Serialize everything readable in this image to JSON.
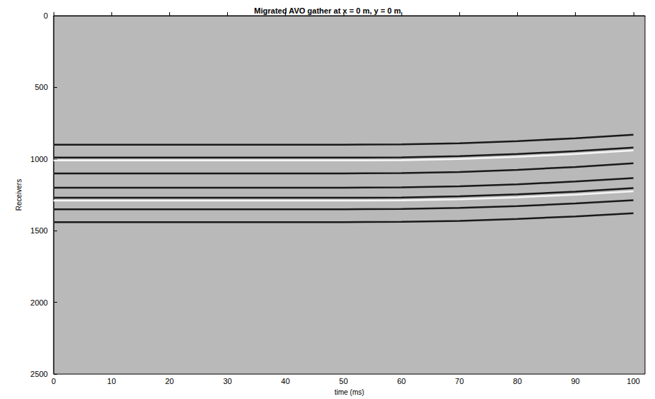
{
  "chart_data": {
    "type": "line",
    "title": "Migrated AVO gather at x = 0 m, y = 0 m",
    "x_label": "time (ms)",
    "y_label": "Receivers",
    "x": [
      0,
      10,
      20,
      30,
      40,
      50,
      60,
      70,
      80,
      90,
      100
    ],
    "series": [
      {
        "color": "#1a1a1a",
        "values": [
          900,
          900,
          900,
          900,
          900,
          900,
          898,
          890,
          875,
          855,
          830
        ]
      },
      {
        "color": "#1a1a1a",
        "values": [
          990,
          990,
          990,
          990,
          990,
          990,
          988,
          980,
          965,
          945,
          920
        ]
      },
      {
        "color": "#f5f5f5",
        "values": [
          1010,
          1010,
          1010,
          1010,
          1010,
          1010,
          1008,
          1000,
          985,
          965,
          940
        ]
      },
      {
        "color": "#1a1a1a",
        "values": [
          1100,
          1100,
          1100,
          1100,
          1100,
          1100,
          1098,
          1090,
          1075,
          1055,
          1030
        ]
      },
      {
        "color": "#1a1a1a",
        "values": [
          1200,
          1200,
          1200,
          1200,
          1200,
          1200,
          1198,
          1190,
          1176,
          1157,
          1133
        ]
      },
      {
        "color": "#1a1a1a",
        "values": [
          1270,
          1270,
          1270,
          1270,
          1270,
          1270,
          1268,
          1260,
          1246,
          1227,
          1203
        ]
      },
      {
        "color": "#f5f5f5",
        "values": [
          1290,
          1290,
          1290,
          1290,
          1290,
          1290,
          1288,
          1281,
          1267,
          1248,
          1225
        ]
      },
      {
        "color": "#1a1a1a",
        "values": [
          1350,
          1350,
          1350,
          1350,
          1350,
          1350,
          1348,
          1341,
          1328,
          1310,
          1287
        ]
      },
      {
        "color": "#1a1a1a",
        "values": [
          1440,
          1440,
          1440,
          1440,
          1440,
          1440,
          1438,
          1431,
          1418,
          1400,
          1378
        ]
      }
    ],
    "xlim": [
      0,
      102
    ],
    "xticks": [
      0,
      10,
      20,
      30,
      40,
      50,
      60,
      70,
      80,
      90,
      100
    ],
    "ylim": [
      0,
      2500
    ],
    "yticks": [
      0,
      500,
      1000,
      1500,
      2000,
      2500
    ],
    "grid": false
  }
}
